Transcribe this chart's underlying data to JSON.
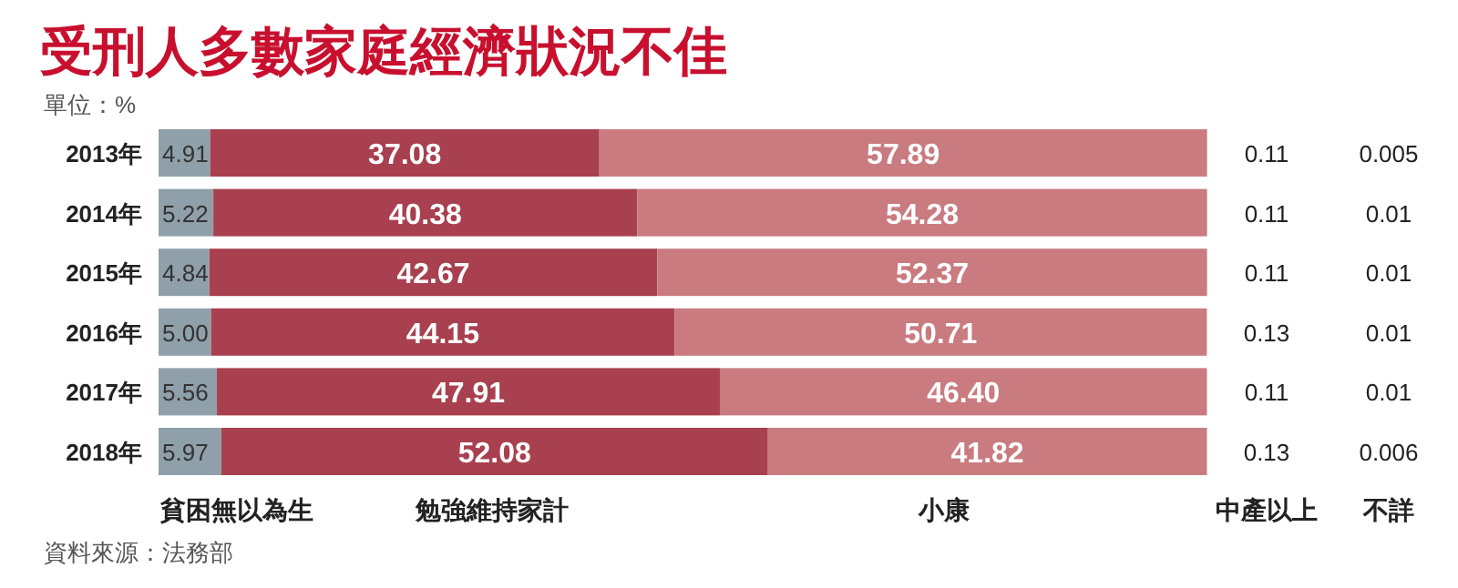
{
  "chart_data": {
    "type": "bar",
    "orientation": "horizontal",
    "stacked": true,
    "legend": "bottom",
    "title": "受刑人多數家庭經濟狀況不佳",
    "subtitle": "單位：%",
    "annotations": [
      "資料來源：法務部"
    ],
    "categories": [
      "2013年",
      "2014年",
      "2015年",
      "2016年",
      "2017年",
      "2018年"
    ],
    "xlim": [
      0,
      100
    ],
    "series": [
      {
        "name": "貧困無以為生",
        "color": "#8fa0ab",
        "values": [
          4.91,
          5.22,
          4.84,
          5.0,
          5.56,
          5.97
        ],
        "value_labels": [
          "4.91",
          "5.22",
          "4.84",
          "5.00",
          "5.56",
          "5.97"
        ]
      },
      {
        "name": "勉強維持家計",
        "color": "#a8404f",
        "values": [
          37.08,
          40.38,
          42.67,
          44.15,
          47.91,
          52.08
        ],
        "value_labels": [
          "37.08",
          "40.38",
          "42.67",
          "44.15",
          "47.91",
          "52.08"
        ]
      },
      {
        "name": "小康",
        "color": "#c97b80",
        "values": [
          57.89,
          54.28,
          52.37,
          50.71,
          46.4,
          41.82
        ],
        "value_labels": [
          "57.89",
          "54.28",
          "52.37",
          "50.71",
          "46.40",
          "41.82"
        ]
      },
      {
        "name": "中產以上",
        "values": [
          0.11,
          0.11,
          0.11,
          0.13,
          0.11,
          0.13
        ],
        "value_labels": [
          "0.11",
          "0.11",
          "0.11",
          "0.13",
          "0.11",
          "0.13"
        ]
      },
      {
        "name": "不詳",
        "values": [
          0.005,
          0.01,
          0.01,
          0.01,
          0.01,
          0.006
        ],
        "value_labels": [
          "0.005",
          "0.01",
          "0.01",
          "0.01",
          "0.01",
          "0.006"
        ]
      }
    ]
  }
}
